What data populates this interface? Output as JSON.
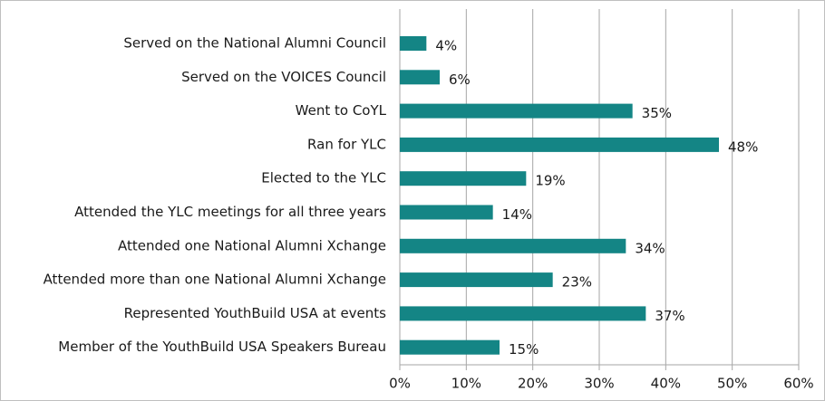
{
  "chart_data": {
    "type": "bar",
    "orientation": "horizontal",
    "categories": [
      "Served on the National Alumni Council",
      "Served on the VOICES Council",
      "Went to CoYL",
      "Ran for YLC",
      "Elected to the YLC",
      "Attended the YLC meetings for all three years",
      "Attended one National Alumni Xchange",
      "Attended more than one National Alumni Xchange",
      "Represented YouthBuild USA at events",
      "Member of the YouthBuild USA Speakers Bureau"
    ],
    "values": [
      4,
      6,
      35,
      48,
      19,
      14,
      34,
      23,
      37,
      15
    ],
    "value_labels": [
      "4%",
      "6%",
      "35%",
      "48%",
      "19%",
      "14%",
      "34%",
      "23%",
      "37%",
      "15%"
    ],
    "color": "#148585",
    "xlim": [
      0,
      60
    ],
    "xticks": [
      {
        "value": 0,
        "label": "0%"
      },
      {
        "value": 10,
        "label": "10%"
      },
      {
        "value": 20,
        "label": "20%"
      },
      {
        "value": 30,
        "label": "30%"
      },
      {
        "value": 40,
        "label": "40%"
      },
      {
        "value": 50,
        "label": "50%"
      },
      {
        "value": 60,
        "label": "60%"
      }
    ],
    "grid": true
  }
}
